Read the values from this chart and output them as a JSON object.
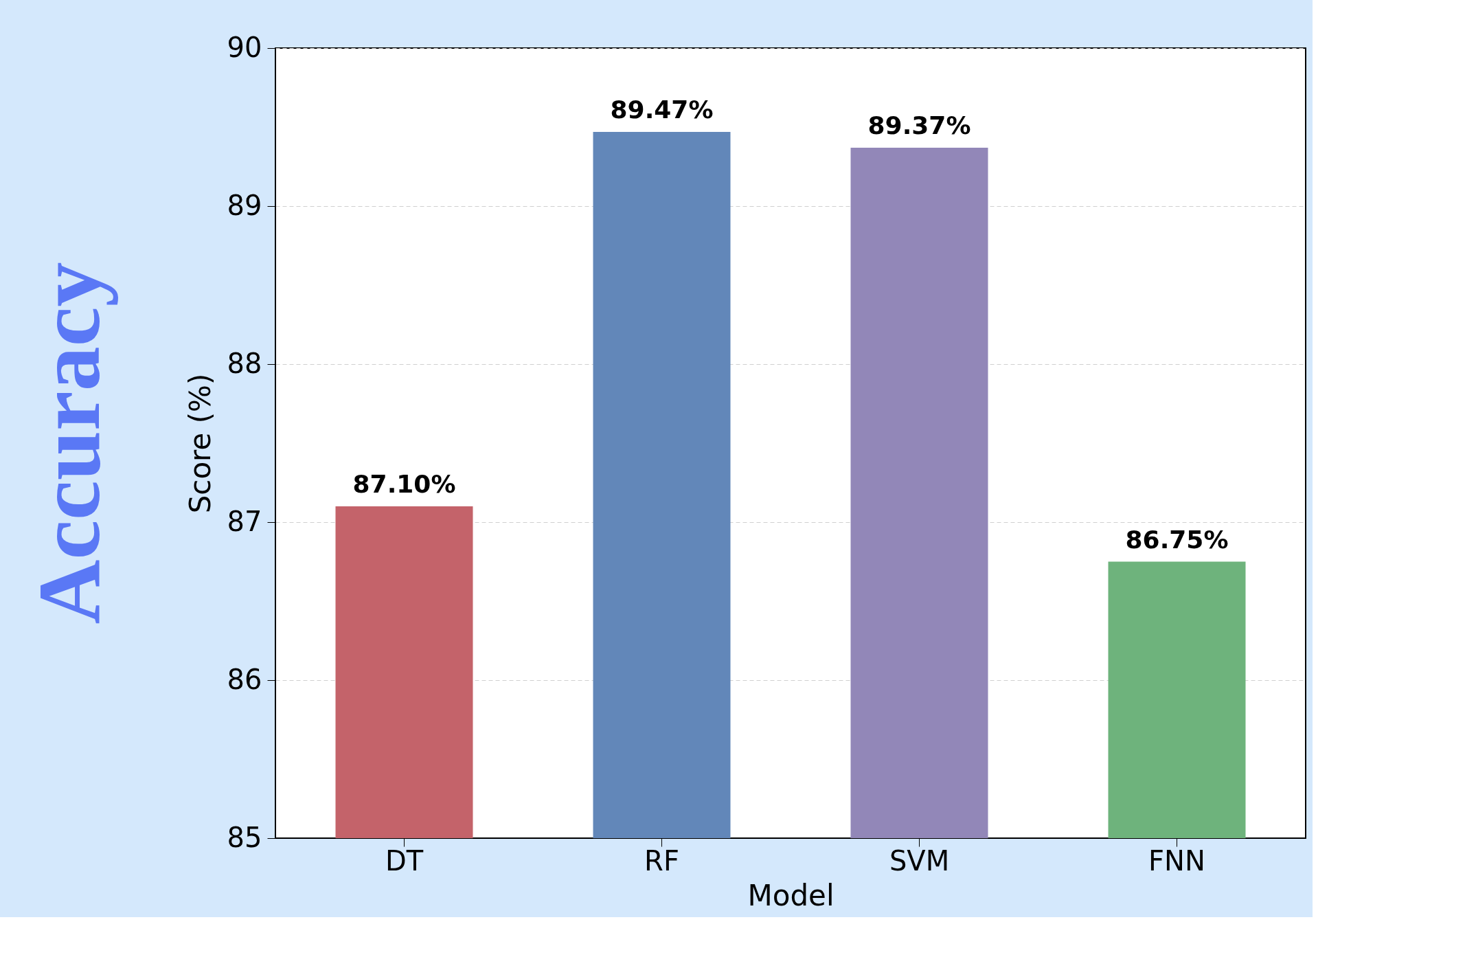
{
  "chart_data": {
    "type": "bar",
    "title": "Accuracy",
    "xlabel": "Model",
    "ylabel": "Score (%)",
    "categories": [
      "DT",
      "RF",
      "SVM",
      "FNN"
    ],
    "values": [
      87.1,
      89.47,
      89.37,
      86.75
    ],
    "colors": [
      "#c4636a",
      "#6287b9",
      "#9287b8",
      "#6eb37c"
    ],
    "value_labels": [
      "87.10%",
      "89.47%",
      "89.37%",
      "86.75%"
    ],
    "ylim": [
      85,
      90
    ],
    "yticks": [
      85,
      86,
      87,
      88,
      89,
      90
    ],
    "grid": "y"
  }
}
